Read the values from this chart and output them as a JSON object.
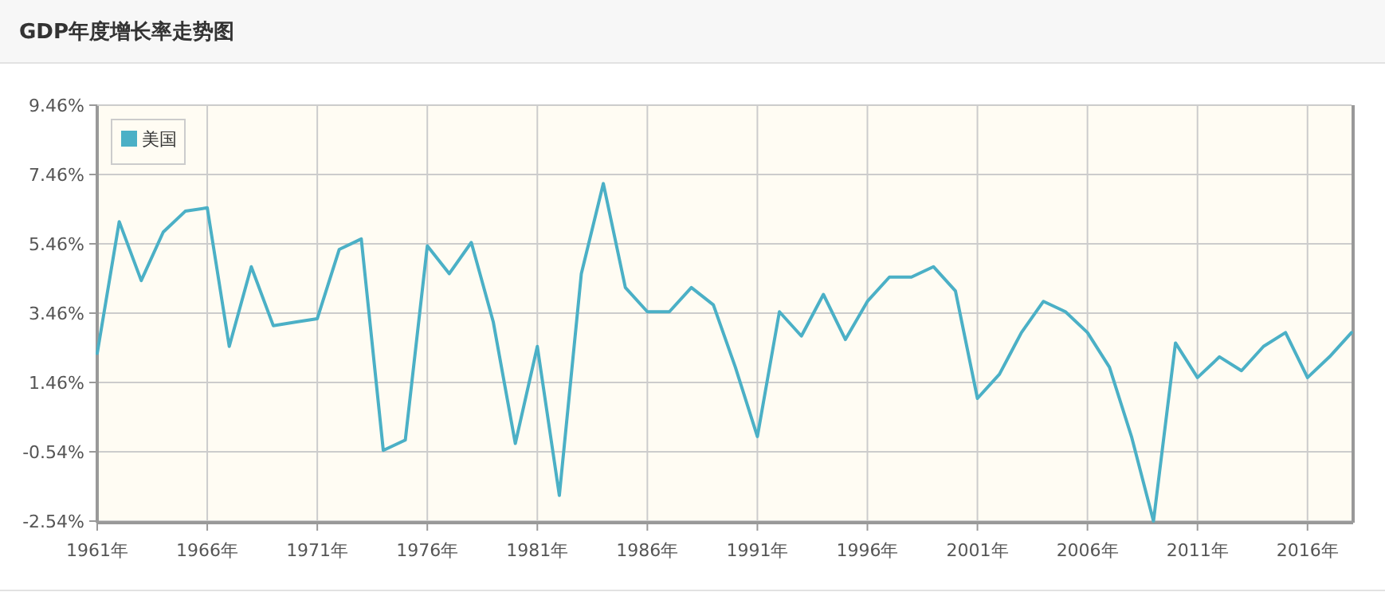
{
  "chart_data": {
    "type": "line",
    "title": "GDP年度增长率走势图",
    "x": [
      1961,
      1962,
      1963,
      1964,
      1965,
      1966,
      1967,
      1968,
      1969,
      1970,
      1971,
      1972,
      1973,
      1974,
      1975,
      1976,
      1977,
      1978,
      1979,
      1980,
      1981,
      1982,
      1983,
      1984,
      1985,
      1986,
      1987,
      1988,
      1989,
      1990,
      1991,
      1992,
      1993,
      1994,
      1995,
      1996,
      1997,
      1998,
      1999,
      2000,
      2001,
      2002,
      2003,
      2004,
      2005,
      2006,
      2007,
      2008,
      2009,
      2010,
      2011,
      2012,
      2013,
      2014,
      2015,
      2016,
      2017,
      2018
    ],
    "series": [
      {
        "name": "美国",
        "color": "#4bb0c6",
        "values": [
          2.3,
          6.1,
          4.4,
          5.8,
          6.4,
          6.5,
          2.5,
          4.8,
          3.1,
          3.2,
          3.3,
          5.3,
          5.6,
          -0.5,
          -0.2,
          5.4,
          4.6,
          5.5,
          3.2,
          -0.3,
          2.5,
          -1.8,
          4.6,
          7.2,
          4.2,
          3.5,
          3.5,
          4.2,
          3.7,
          1.9,
          -0.1,
          3.5,
          2.8,
          4.0,
          2.7,
          3.8,
          4.5,
          4.5,
          4.8,
          4.1,
          1.0,
          1.7,
          2.9,
          3.8,
          3.5,
          2.9,
          1.9,
          -0.1,
          -2.54,
          2.6,
          1.6,
          2.2,
          1.8,
          2.5,
          2.9,
          1.6,
          2.2,
          2.9
        ]
      }
    ],
    "xlim": [
      1961,
      2018
    ],
    "xticks": [
      {
        "value": 1961,
        "label": "1961年"
      },
      {
        "value": 1966,
        "label": "1966年"
      },
      {
        "value": 1971,
        "label": "1971年"
      },
      {
        "value": 1976,
        "label": "1976年"
      },
      {
        "value": 1981,
        "label": "1981年"
      },
      {
        "value": 1986,
        "label": "1986年"
      },
      {
        "value": 1991,
        "label": "1991年"
      },
      {
        "value": 1996,
        "label": "1996年"
      },
      {
        "value": 2001,
        "label": "2001年"
      },
      {
        "value": 2006,
        "label": "2006年"
      },
      {
        "value": 2011,
        "label": "2011年"
      },
      {
        "value": 2016,
        "label": "2016年"
      }
    ],
    "ylim": [
      -2.54,
      9.46
    ],
    "yticks": [
      {
        "value": -2.54,
        "label": "-2.54%"
      },
      {
        "value": -0.54,
        "label": "-0.54%"
      },
      {
        "value": 1.46,
        "label": "1.46%"
      },
      {
        "value": 3.46,
        "label": "3.46%"
      },
      {
        "value": 5.46,
        "label": "5.46%"
      },
      {
        "value": 7.46,
        "label": "7.46%"
      },
      {
        "value": 9.46,
        "label": "9.46%"
      }
    ],
    "grid": true,
    "legend": "top left",
    "marker": "none",
    "line_style": "solid"
  }
}
